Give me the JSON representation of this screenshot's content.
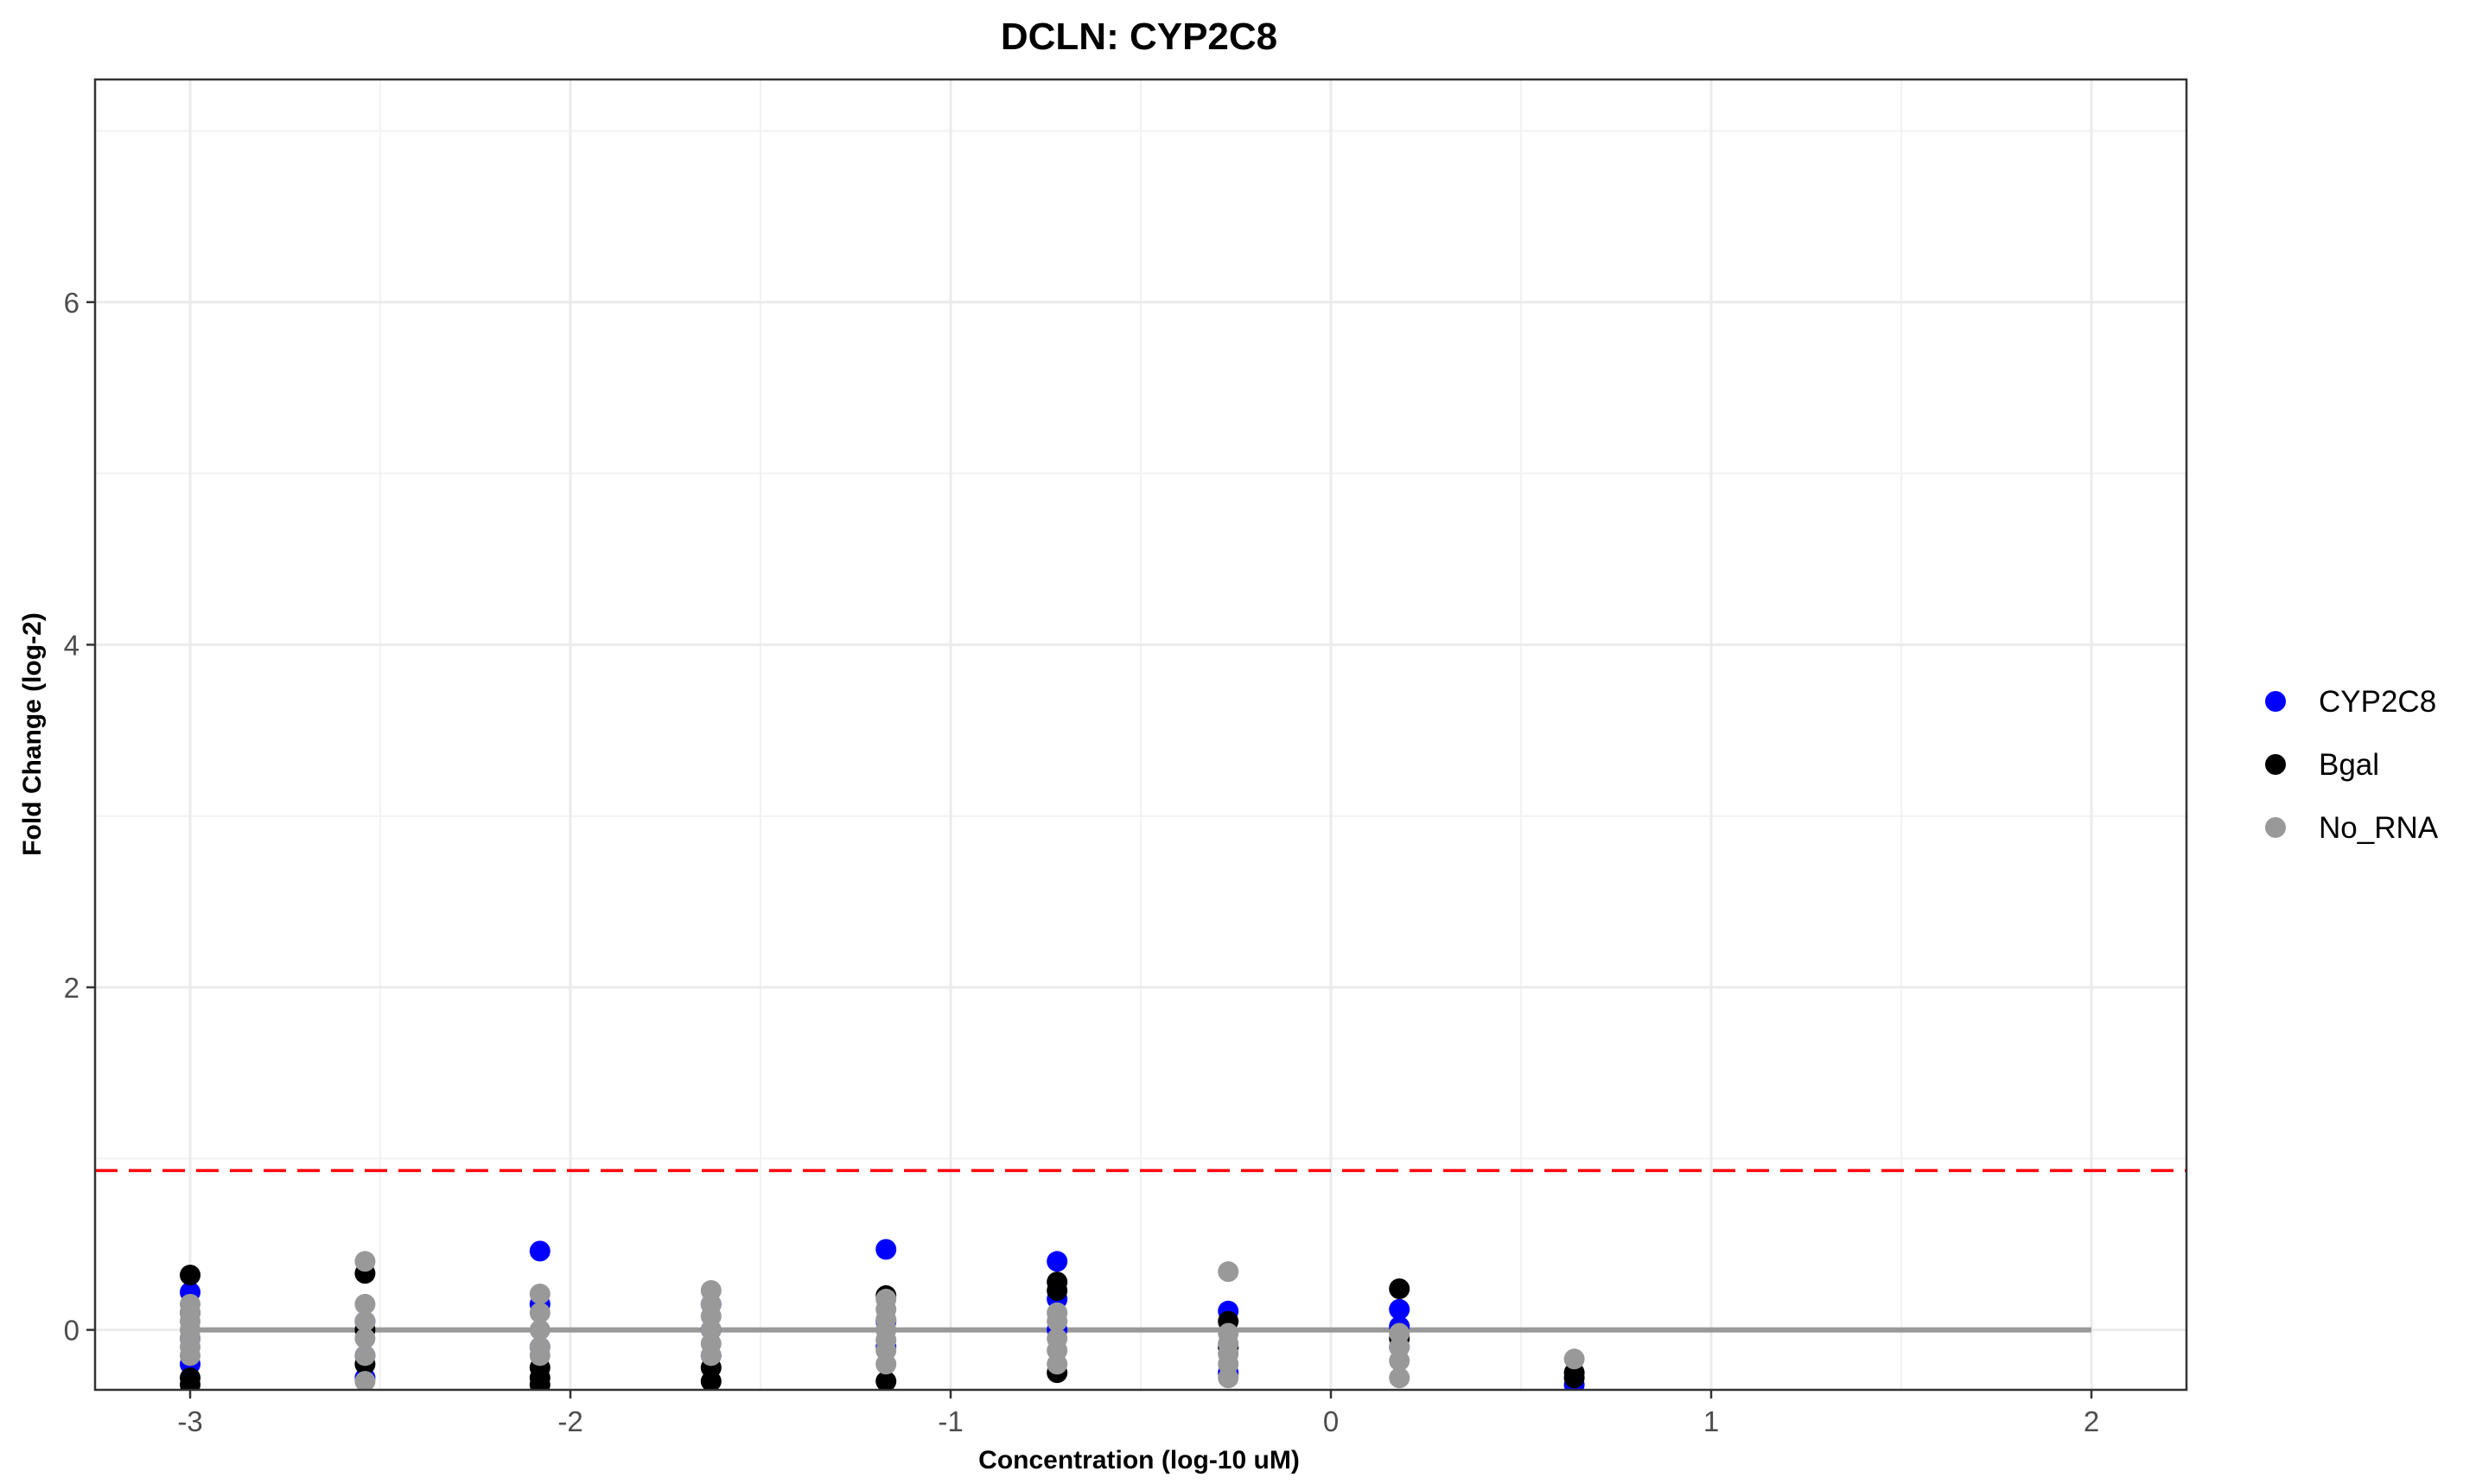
{
  "chart_data": {
    "type": "scatter",
    "title": "DCLN: CYP2C8",
    "xlabel": "Concentration (log-10 uM)",
    "ylabel": "Fold Change (log-2)",
    "xlim": [
      -3.25,
      2.25
    ],
    "ylim": [
      -0.35,
      7.3
    ],
    "x_ticks": [
      -3,
      -2,
      -1,
      0,
      1,
      2
    ],
    "x_tick_labels": [
      "-3",
      "-2",
      "-1",
      "0",
      "1",
      "2"
    ],
    "y_ticks": [
      0,
      2,
      4,
      6
    ],
    "y_tick_labels": [
      "0",
      "2",
      "4",
      "6"
    ],
    "grid": true,
    "legend_position": "right",
    "threshold_line": {
      "y": 0.93,
      "color": "#ff0000",
      "style": "dashed"
    },
    "baseline": {
      "x": [
        -3,
        2
      ],
      "y": 0,
      "color": "#999999"
    },
    "series": [
      {
        "name": "CYP2C8",
        "color": "#0000ff",
        "points": [
          [
            -3.0,
            0.22
          ],
          [
            -3.0,
            0.1
          ],
          [
            -3.0,
            -0.05
          ],
          [
            -3.0,
            -0.2
          ],
          [
            -2.54,
            0.05
          ],
          [
            -2.54,
            -0.15
          ],
          [
            -2.54,
            -0.28
          ],
          [
            -2.08,
            0.46
          ],
          [
            -2.08,
            0.15
          ],
          [
            -2.08,
            -0.1
          ],
          [
            -1.63,
            0.15
          ],
          [
            -1.63,
            0.0
          ],
          [
            -1.63,
            -0.15
          ],
          [
            -1.17,
            0.47
          ],
          [
            -1.17,
            0.05
          ],
          [
            -1.17,
            -0.1
          ],
          [
            -0.72,
            0.4
          ],
          [
            -0.72,
            0.18
          ],
          [
            -0.72,
            0.0
          ],
          [
            -0.27,
            0.11
          ],
          [
            -0.27,
            -0.1
          ],
          [
            -0.27,
            -0.25
          ],
          [
            0.18,
            0.12
          ],
          [
            0.18,
            0.02
          ],
          [
            0.18,
            -0.1
          ],
          [
            0.64,
            -0.32
          ]
        ]
      },
      {
        "name": "Bgal",
        "color": "#000000",
        "points": [
          [
            -3.0,
            0.32
          ],
          [
            -3.0,
            -0.28
          ],
          [
            -3.0,
            -0.32
          ],
          [
            -2.54,
            0.33
          ],
          [
            -2.54,
            0.0
          ],
          [
            -2.54,
            -0.2
          ],
          [
            -2.08,
            -0.22
          ],
          [
            -2.08,
            -0.28
          ],
          [
            -2.08,
            -0.32
          ],
          [
            -1.63,
            -0.22
          ],
          [
            -1.63,
            -0.3
          ],
          [
            -1.17,
            0.2
          ],
          [
            -1.17,
            -0.3
          ],
          [
            -0.72,
            0.28
          ],
          [
            -0.72,
            0.23
          ],
          [
            -0.72,
            -0.25
          ],
          [
            -0.27,
            0.05
          ],
          [
            -0.27,
            -0.1
          ],
          [
            0.18,
            0.24
          ],
          [
            0.18,
            -0.05
          ],
          [
            0.64,
            -0.25
          ],
          [
            0.64,
            -0.28
          ]
        ]
      },
      {
        "name": "No_RNA",
        "color": "#999999",
        "points": [
          [
            -3.0,
            0.15
          ],
          [
            -3.0,
            0.1
          ],
          [
            -3.0,
            0.05
          ],
          [
            -3.0,
            0.0
          ],
          [
            -3.0,
            -0.05
          ],
          [
            -3.0,
            -0.1
          ],
          [
            -3.0,
            -0.15
          ],
          [
            -2.54,
            0.4
          ],
          [
            -2.54,
            0.15
          ],
          [
            -2.54,
            0.05
          ],
          [
            -2.54,
            -0.05
          ],
          [
            -2.54,
            -0.15
          ],
          [
            -2.54,
            -0.3
          ],
          [
            -2.08,
            0.21
          ],
          [
            -2.08,
            0.1
          ],
          [
            -2.08,
            0.0
          ],
          [
            -2.08,
            -0.1
          ],
          [
            -2.08,
            -0.15
          ],
          [
            -1.63,
            0.23
          ],
          [
            -1.63,
            0.15
          ],
          [
            -1.63,
            0.08
          ],
          [
            -1.63,
            0.0
          ],
          [
            -1.63,
            -0.08
          ],
          [
            -1.63,
            -0.15
          ],
          [
            -1.17,
            0.18
          ],
          [
            -1.17,
            0.12
          ],
          [
            -1.17,
            0.06
          ],
          [
            -1.17,
            0.0
          ],
          [
            -1.17,
            -0.06
          ],
          [
            -1.17,
            -0.12
          ],
          [
            -1.17,
            -0.2
          ],
          [
            -0.72,
            0.1
          ],
          [
            -0.72,
            0.05
          ],
          [
            -0.72,
            -0.05
          ],
          [
            -0.72,
            -0.12
          ],
          [
            -0.72,
            -0.2
          ],
          [
            -0.27,
            0.34
          ],
          [
            -0.27,
            -0.02
          ],
          [
            -0.27,
            -0.08
          ],
          [
            -0.27,
            -0.14
          ],
          [
            -0.27,
            -0.2
          ],
          [
            -0.27,
            -0.28
          ],
          [
            0.18,
            -0.02
          ],
          [
            0.18,
            -0.1
          ],
          [
            0.18,
            -0.18
          ],
          [
            0.18,
            -0.28
          ],
          [
            0.64,
            -0.17
          ]
        ]
      }
    ]
  }
}
